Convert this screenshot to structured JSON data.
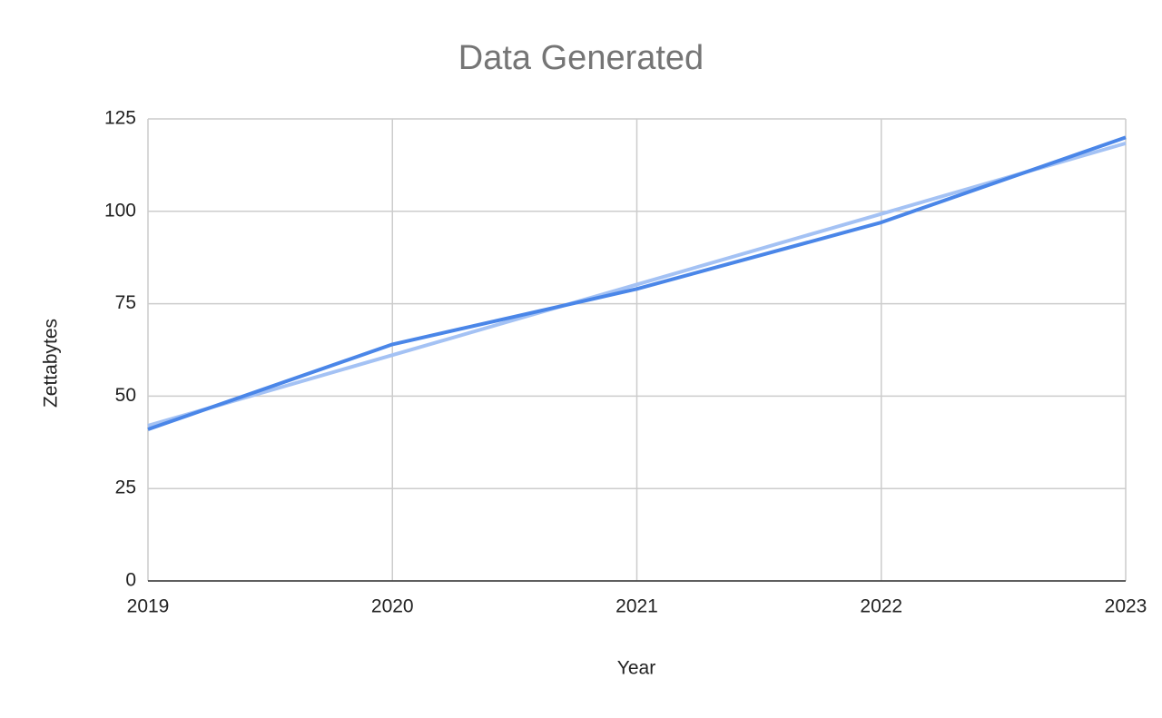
{
  "chart_data": {
    "type": "line",
    "title": "Data Generated",
    "x_label": "Year",
    "y_label": "Zettabytes",
    "x": [
      2019,
      2020,
      2021,
      2022,
      2023
    ],
    "series": [
      {
        "color": "#4a86e8",
        "values": [
          41,
          64,
          79,
          97,
          120
        ]
      },
      {
        "color": "#a4c2f4",
        "values": [
          42,
          61.1,
          80.2,
          99.3,
          118.4
        ]
      }
    ],
    "xlim": [
      2019,
      2023
    ],
    "xticks": [
      2019,
      2020,
      2021,
      2022,
      2023
    ],
    "ylim": [
      0,
      125
    ],
    "yticks": [
      0,
      25,
      50,
      75,
      100,
      125
    ],
    "grid": true
  }
}
